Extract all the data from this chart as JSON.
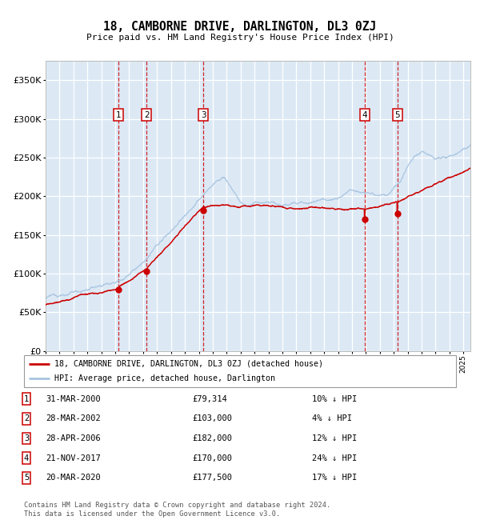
{
  "title": "18, CAMBORNE DRIVE, DARLINGTON, DL3 0ZJ",
  "subtitle": "Price paid vs. HM Land Registry's House Price Index (HPI)",
  "background_color": "#ffffff",
  "plot_bg_color": "#dce9f5",
  "grid_color": "#ffffff",
  "hpi_color": "#a8c4e0",
  "price_color": "#cc0000",
  "sale_marker_color": "#cc0000",
  "vline_color": "#cc0000",
  "ylim": [
    0,
    375000
  ],
  "yticks": [
    0,
    50000,
    100000,
    150000,
    200000,
    250000,
    300000,
    350000
  ],
  "ytick_labels": [
    "£0",
    "£50K",
    "£100K",
    "£150K",
    "£200K",
    "£250K",
    "£300K",
    "£350K"
  ],
  "sales": [
    {
      "num": 1,
      "date": "31-MAR-2000",
      "year": 2000.25,
      "price": 79314,
      "pct": "10%"
    },
    {
      "num": 2,
      "date": "28-MAR-2002",
      "year": 2002.25,
      "price": 103000,
      "pct": "4%"
    },
    {
      "num": 3,
      "date": "28-APR-2006",
      "year": 2006.33,
      "price": 182000,
      "pct": "12%"
    },
    {
      "num": 4,
      "date": "21-NOV-2017",
      "year": 2017.9,
      "price": 170000,
      "pct": "24%"
    },
    {
      "num": 5,
      "date": "20-MAR-2020",
      "year": 2020.25,
      "price": 177500,
      "pct": "17%"
    }
  ],
  "legend_label_price": "18, CAMBORNE DRIVE, DARLINGTON, DL3 0ZJ (detached house)",
  "legend_label_hpi": "HPI: Average price, detached house, Darlington",
  "footer": "Contains HM Land Registry data © Crown copyright and database right 2024.\nThis data is licensed under the Open Government Licence v3.0.",
  "xstart": 1995.0,
  "xend": 2025.5
}
